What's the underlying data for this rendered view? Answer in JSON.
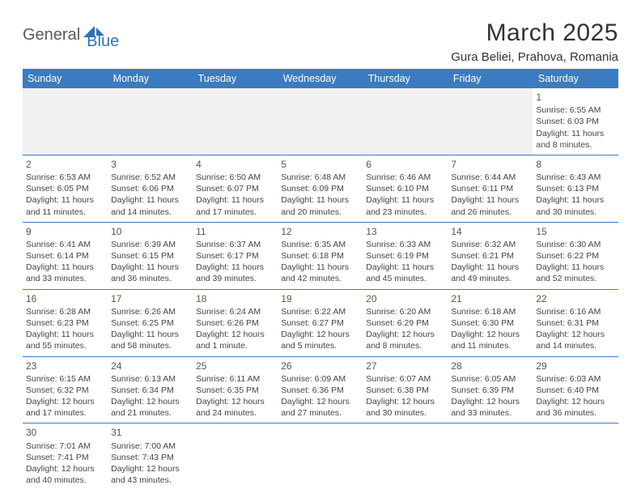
{
  "logo": {
    "part1": "General",
    "part2": "Blue"
  },
  "title": "March 2025",
  "location": "Gura Beliei, Prahova, Romania",
  "colors": {
    "header_bg": "#3b7bbf",
    "header_text": "#ffffff",
    "border": "#3b7bbf",
    "logo_blue": "#2f72b8",
    "logo_grey": "#5a5a5a",
    "text": "#444444",
    "empty_bg": "#f1f1f1"
  },
  "weekdays": [
    "Sunday",
    "Monday",
    "Tuesday",
    "Wednesday",
    "Thursday",
    "Friday",
    "Saturday"
  ],
  "weeks": [
    [
      null,
      null,
      null,
      null,
      null,
      null,
      {
        "d": "1",
        "sr": "Sunrise: 6:55 AM",
        "ss": "Sunset: 6:03 PM",
        "dl1": "Daylight: 11 hours",
        "dl2": "and 8 minutes."
      }
    ],
    [
      {
        "d": "2",
        "sr": "Sunrise: 6:53 AM",
        "ss": "Sunset: 6:05 PM",
        "dl1": "Daylight: 11 hours",
        "dl2": "and 11 minutes."
      },
      {
        "d": "3",
        "sr": "Sunrise: 6:52 AM",
        "ss": "Sunset: 6:06 PM",
        "dl1": "Daylight: 11 hours",
        "dl2": "and 14 minutes."
      },
      {
        "d": "4",
        "sr": "Sunrise: 6:50 AM",
        "ss": "Sunset: 6:07 PM",
        "dl1": "Daylight: 11 hours",
        "dl2": "and 17 minutes."
      },
      {
        "d": "5",
        "sr": "Sunrise: 6:48 AM",
        "ss": "Sunset: 6:09 PM",
        "dl1": "Daylight: 11 hours",
        "dl2": "and 20 minutes."
      },
      {
        "d": "6",
        "sr": "Sunrise: 6:46 AM",
        "ss": "Sunset: 6:10 PM",
        "dl1": "Daylight: 11 hours",
        "dl2": "and 23 minutes."
      },
      {
        "d": "7",
        "sr": "Sunrise: 6:44 AM",
        "ss": "Sunset: 6:11 PM",
        "dl1": "Daylight: 11 hours",
        "dl2": "and 26 minutes."
      },
      {
        "d": "8",
        "sr": "Sunrise: 6:43 AM",
        "ss": "Sunset: 6:13 PM",
        "dl1": "Daylight: 11 hours",
        "dl2": "and 30 minutes."
      }
    ],
    [
      {
        "d": "9",
        "sr": "Sunrise: 6:41 AM",
        "ss": "Sunset: 6:14 PM",
        "dl1": "Daylight: 11 hours",
        "dl2": "and 33 minutes."
      },
      {
        "d": "10",
        "sr": "Sunrise: 6:39 AM",
        "ss": "Sunset: 6:15 PM",
        "dl1": "Daylight: 11 hours",
        "dl2": "and 36 minutes."
      },
      {
        "d": "11",
        "sr": "Sunrise: 6:37 AM",
        "ss": "Sunset: 6:17 PM",
        "dl1": "Daylight: 11 hours",
        "dl2": "and 39 minutes."
      },
      {
        "d": "12",
        "sr": "Sunrise: 6:35 AM",
        "ss": "Sunset: 6:18 PM",
        "dl1": "Daylight: 11 hours",
        "dl2": "and 42 minutes."
      },
      {
        "d": "13",
        "sr": "Sunrise: 6:33 AM",
        "ss": "Sunset: 6:19 PM",
        "dl1": "Daylight: 11 hours",
        "dl2": "and 45 minutes."
      },
      {
        "d": "14",
        "sr": "Sunrise: 6:32 AM",
        "ss": "Sunset: 6:21 PM",
        "dl1": "Daylight: 11 hours",
        "dl2": "and 49 minutes."
      },
      {
        "d": "15",
        "sr": "Sunrise: 6:30 AM",
        "ss": "Sunset: 6:22 PM",
        "dl1": "Daylight: 11 hours",
        "dl2": "and 52 minutes."
      }
    ],
    [
      {
        "d": "16",
        "sr": "Sunrise: 6:28 AM",
        "ss": "Sunset: 6:23 PM",
        "dl1": "Daylight: 11 hours",
        "dl2": "and 55 minutes."
      },
      {
        "d": "17",
        "sr": "Sunrise: 6:26 AM",
        "ss": "Sunset: 6:25 PM",
        "dl1": "Daylight: 11 hours",
        "dl2": "and 58 minutes."
      },
      {
        "d": "18",
        "sr": "Sunrise: 6:24 AM",
        "ss": "Sunset: 6:26 PM",
        "dl1": "Daylight: 12 hours",
        "dl2": "and 1 minute."
      },
      {
        "d": "19",
        "sr": "Sunrise: 6:22 AM",
        "ss": "Sunset: 6:27 PM",
        "dl1": "Daylight: 12 hours",
        "dl2": "and 5 minutes."
      },
      {
        "d": "20",
        "sr": "Sunrise: 6:20 AM",
        "ss": "Sunset: 6:29 PM",
        "dl1": "Daylight: 12 hours",
        "dl2": "and 8 minutes."
      },
      {
        "d": "21",
        "sr": "Sunrise: 6:18 AM",
        "ss": "Sunset: 6:30 PM",
        "dl1": "Daylight: 12 hours",
        "dl2": "and 11 minutes."
      },
      {
        "d": "22",
        "sr": "Sunrise: 6:16 AM",
        "ss": "Sunset: 6:31 PM",
        "dl1": "Daylight: 12 hours",
        "dl2": "and 14 minutes."
      }
    ],
    [
      {
        "d": "23",
        "sr": "Sunrise: 6:15 AM",
        "ss": "Sunset: 6:32 PM",
        "dl1": "Daylight: 12 hours",
        "dl2": "and 17 minutes."
      },
      {
        "d": "24",
        "sr": "Sunrise: 6:13 AM",
        "ss": "Sunset: 6:34 PM",
        "dl1": "Daylight: 12 hours",
        "dl2": "and 21 minutes."
      },
      {
        "d": "25",
        "sr": "Sunrise: 6:11 AM",
        "ss": "Sunset: 6:35 PM",
        "dl1": "Daylight: 12 hours",
        "dl2": "and 24 minutes."
      },
      {
        "d": "26",
        "sr": "Sunrise: 6:09 AM",
        "ss": "Sunset: 6:36 PM",
        "dl1": "Daylight: 12 hours",
        "dl2": "and 27 minutes."
      },
      {
        "d": "27",
        "sr": "Sunrise: 6:07 AM",
        "ss": "Sunset: 6:38 PM",
        "dl1": "Daylight: 12 hours",
        "dl2": "and 30 minutes."
      },
      {
        "d": "28",
        "sr": "Sunrise: 6:05 AM",
        "ss": "Sunset: 6:39 PM",
        "dl1": "Daylight: 12 hours",
        "dl2": "and 33 minutes."
      },
      {
        "d": "29",
        "sr": "Sunrise: 6:03 AM",
        "ss": "Sunset: 6:40 PM",
        "dl1": "Daylight: 12 hours",
        "dl2": "and 36 minutes."
      }
    ],
    [
      {
        "d": "30",
        "sr": "Sunrise: 7:01 AM",
        "ss": "Sunset: 7:41 PM",
        "dl1": "Daylight: 12 hours",
        "dl2": "and 40 minutes."
      },
      {
        "d": "31",
        "sr": "Sunrise: 7:00 AM",
        "ss": "Sunset: 7:43 PM",
        "dl1": "Daylight: 12 hours",
        "dl2": "and 43 minutes."
      },
      null,
      null,
      null,
      null,
      null
    ]
  ]
}
